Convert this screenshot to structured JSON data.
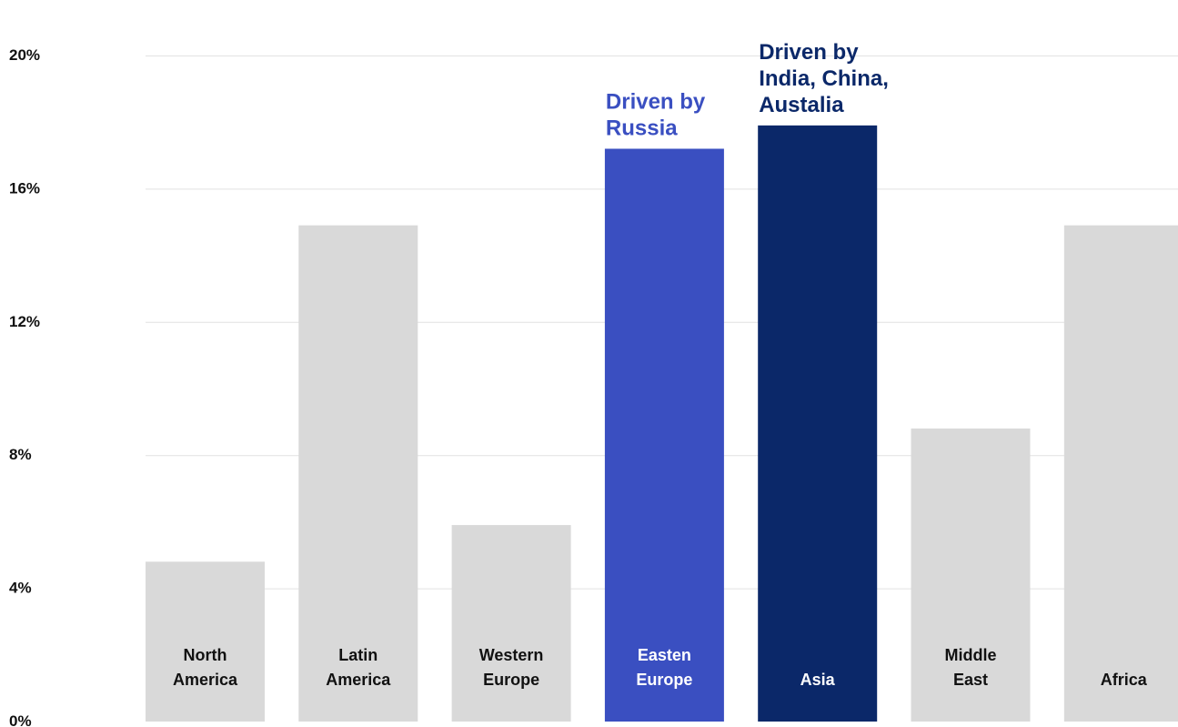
{
  "chart_data": {
    "type": "bar",
    "categories": [
      [
        "North",
        "America"
      ],
      [
        "Latin",
        "America"
      ],
      [
        "Western",
        "Europe"
      ],
      [
        "Easten",
        "Europe"
      ],
      [
        "Asia"
      ],
      [
        "Middle",
        "East"
      ],
      [
        "Africa"
      ]
    ],
    "values": [
      4.8,
      14.9,
      5.9,
      17.2,
      17.9,
      8.8,
      14.9
    ],
    "ylim": [
      0,
      20
    ],
    "yticks": [
      "0%",
      "4%",
      "8%",
      "12%",
      "16%",
      "20%"
    ],
    "ytick_values": [
      0,
      4,
      8,
      12,
      16,
      20
    ],
    "grid": true,
    "title": "",
    "xlabel": "",
    "ylabel": "",
    "colors": {
      "default": "#d9d9d9",
      "default_text": "#111111",
      "highlight_text": "#ffffff",
      "Easten Europe": "#3a4fc1",
      "Asia": "#0b2869"
    },
    "annotations": [
      {
        "category_index": 3,
        "lines": [
          "Driven by",
          "Russia"
        ],
        "color": "#3a4fc1"
      },
      {
        "category_index": 4,
        "lines": [
          "Driven by",
          "India, China,",
          "Austalia"
        ],
        "color": "#0b2869"
      }
    ]
  }
}
